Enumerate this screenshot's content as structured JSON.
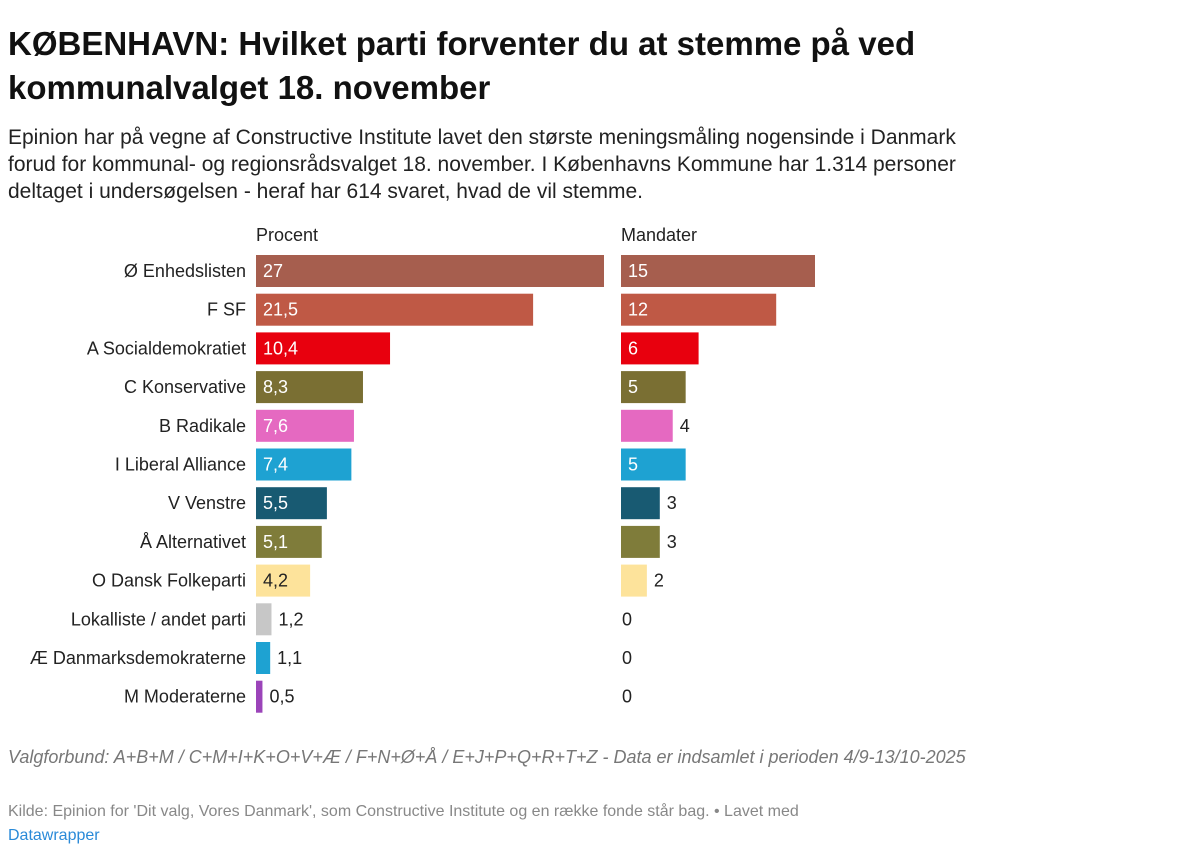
{
  "title": "KØBENHAVN: Hvilket parti forventer du at stemme på ved kommunalvalget 18. november",
  "subtitle": "Epinion har på vegne af Constructive Institute lavet den største meningsmåling nogensinde i Danmark forud for kommunal- og regionsrådsvalget 18. november. I Københavns Kommune har 1.314 personer deltaget i undersøgelsen - heraf har 614 svaret, hvad de vil stemme.",
  "notes": "Valgforbund: A+B+M / C+M+I+K+O+V+Æ / F+N+Ø+Å / E+J+P+Q+R+T+Z - Data er indsamlet i perioden 4/9-13/10-2025",
  "source_text": "Kilde: Epinion for 'Dit valg, Vores Danmark', som Constructive Institute og en række fonde står bag. • Lavet med",
  "source_link": "Datawrapper",
  "chart_data": {
    "type": "bar",
    "orientation": "horizontal",
    "categories": [
      "Ø Enhedslisten",
      "F SF",
      "A Socialdemokratiet",
      "C Konservative",
      "B Radikale",
      "I Liberal Alliance",
      "V Venstre",
      "Å Alternativet",
      "O Dansk Folkeparti",
      "Lokalliste / andet parti",
      "Æ Danmarksdemokraterne",
      "M Moderaterne"
    ],
    "colors": [
      "#a65e4e",
      "#bf5945",
      "#e8000e",
      "#7a6f33",
      "#e569c1",
      "#1ea2d2",
      "#185a72",
      "#7f7c3a",
      "#fde39b",
      "#c7c7c7",
      "#1ea2d2",
      "#9b44b9"
    ],
    "series": [
      {
        "name": "Procent",
        "values": [
          27,
          21.5,
          10.4,
          8.3,
          7.6,
          7.4,
          5.5,
          5.1,
          4.2,
          1.2,
          1.1,
          0.5
        ],
        "labels": [
          "27",
          "21,5",
          "10,4",
          "8,3",
          "7,6",
          "7,4",
          "5,5",
          "5,1",
          "4,2",
          "1,2",
          "1,1",
          "0,5"
        ],
        "xlim": [
          0,
          27
        ]
      },
      {
        "name": "Mandater",
        "values": [
          15,
          12,
          6,
          5,
          4,
          5,
          3,
          3,
          2,
          0,
          0,
          0
        ],
        "labels": [
          "15",
          "12",
          "6",
          "5",
          "4",
          "5",
          "3",
          "3",
          "2",
          "0",
          "0",
          "0"
        ],
        "xlim": [
          0,
          15
        ]
      }
    ]
  }
}
